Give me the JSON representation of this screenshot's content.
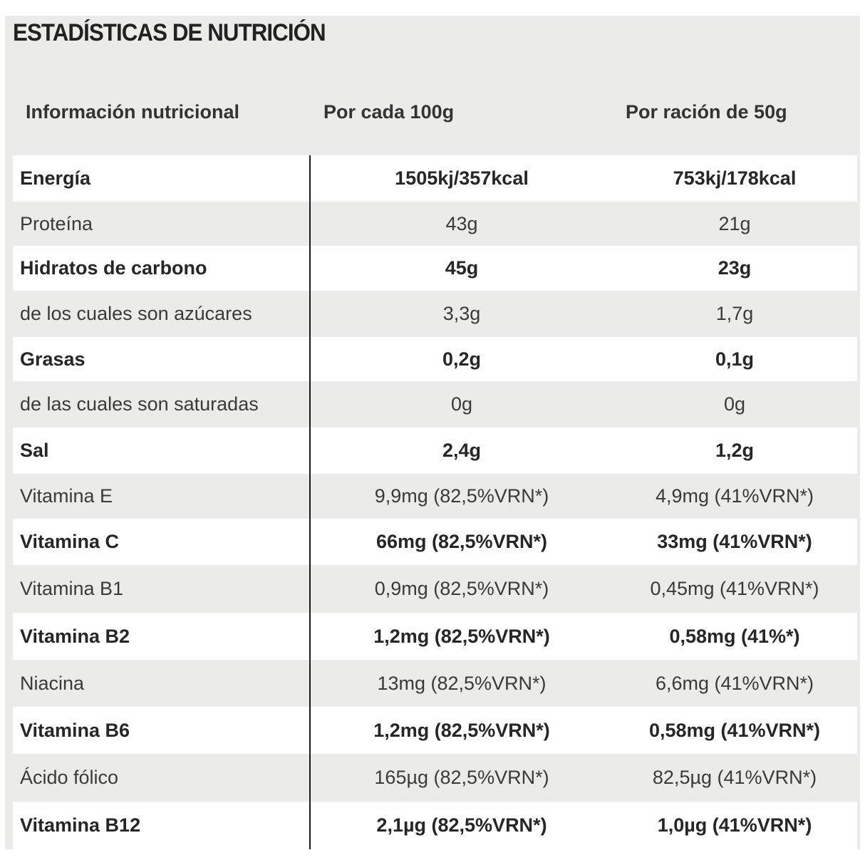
{
  "title": "ESTADÍSTICAS DE NUTRICIÓN",
  "headers": {
    "nutrient": "Información nutricional",
    "per100": "Por cada 100g",
    "perServing": "Por ración de 50g"
  },
  "rows": [
    {
      "name": "Energía",
      "per100": "1505kj/357kcal",
      "perServing": "753kj/178kcal",
      "bold": true
    },
    {
      "name": "Proteína",
      "per100": "43g",
      "perServing": "21g",
      "bold": false
    },
    {
      "name": "Hidratos de carbono",
      "per100": "45g",
      "perServing": "23g",
      "bold": true
    },
    {
      "name": "de los cuales son azúcares",
      "per100": "3,3g",
      "perServing": "1,7g",
      "bold": false
    },
    {
      "name": "Grasas",
      "per100": "0,2g",
      "perServing": "0,1g",
      "bold": true
    },
    {
      "name": "de las cuales son saturadas",
      "per100": "0g",
      "perServing": "0g",
      "bold": false
    },
    {
      "name": "Sal",
      "per100": "2,4g",
      "perServing": "1,2g",
      "bold": true
    },
    {
      "name": "Vitamina E",
      "per100": "9,9mg (82,5%VRN*)",
      "perServing": "4,9mg (41%VRN*)",
      "bold": false
    },
    {
      "name": "Vitamina C",
      "per100": "66mg (82,5%VRN*)",
      "perServing": "33mg (41%VRN*)",
      "bold": true
    },
    {
      "name": "Vitamina B1",
      "per100": "0,9mg (82,5%VRN*)",
      "perServing": "0,45mg (41%VRN*)",
      "bold": false
    },
    {
      "name": "Vitamina B2",
      "per100": "1,2mg (82,5%VRN*)",
      "perServing": "0,58mg (41%*)",
      "bold": true
    },
    {
      "name": "Niacina",
      "per100": "13mg (82,5%VRN*)",
      "perServing": "6,6mg (41%VRN*)",
      "bold": false
    },
    {
      "name": "Vitamina B6",
      "per100": "1,2mg (82,5%VRN*)",
      "perServing": "0,58mg (41%VRN*)",
      "bold": true
    },
    {
      "name": "Ácido fólico",
      "per100": "165µg (82,5%VRN*)",
      "perServing": "82,5µg (41%VRN*)",
      "bold": false
    },
    {
      "name": "Vitamina B12",
      "per100": "2,1µg (82,5%VRN*)",
      "perServing": "1,0µg (41%VRN*)",
      "bold": true
    }
  ]
}
